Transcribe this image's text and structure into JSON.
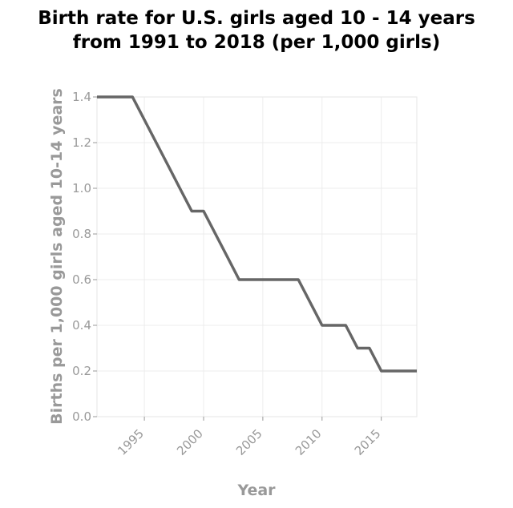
{
  "chart_data": {
    "type": "line",
    "title_lines": [
      "Birth rate for U.S. girls aged 10 - 14 years",
      "from 1991 to 2018 (per 1,000 girls)"
    ],
    "xlabel": "Year",
    "ylabel": "Births per 1,000 girls aged 10-14 years",
    "xlim": [
      1991,
      2018
    ],
    "ylim": [
      0,
      1.4
    ],
    "x_ticks": [
      1995,
      2000,
      2005,
      2010,
      2015
    ],
    "y_ticks": [
      "0.0",
      "0.2",
      "0.4",
      "0.6",
      "0.8",
      "1.0",
      "1.2",
      "1.4"
    ],
    "grid": true,
    "series": [
      {
        "x": [
          1991,
          1992,
          1993,
          1994,
          1995,
          1996,
          1997,
          1998,
          1999,
          2000,
          2001,
          2002,
          2003,
          2004,
          2005,
          2006,
          2007,
          2008,
          2009,
          2010,
          2011,
          2012,
          2013,
          2014,
          2015,
          2016,
          2017,
          2018
        ],
        "y": [
          1.4,
          1.4,
          1.4,
          1.4,
          1.3,
          1.2,
          1.1,
          1.0,
          0.9,
          0.9,
          0.8,
          0.7,
          0.6,
          0.6,
          0.6,
          0.6,
          0.6,
          0.6,
          0.5,
          0.4,
          0.4,
          0.4,
          0.3,
          0.3,
          0.2,
          0.2,
          0.2,
          0.2
        ],
        "color": "#666666"
      }
    ]
  }
}
